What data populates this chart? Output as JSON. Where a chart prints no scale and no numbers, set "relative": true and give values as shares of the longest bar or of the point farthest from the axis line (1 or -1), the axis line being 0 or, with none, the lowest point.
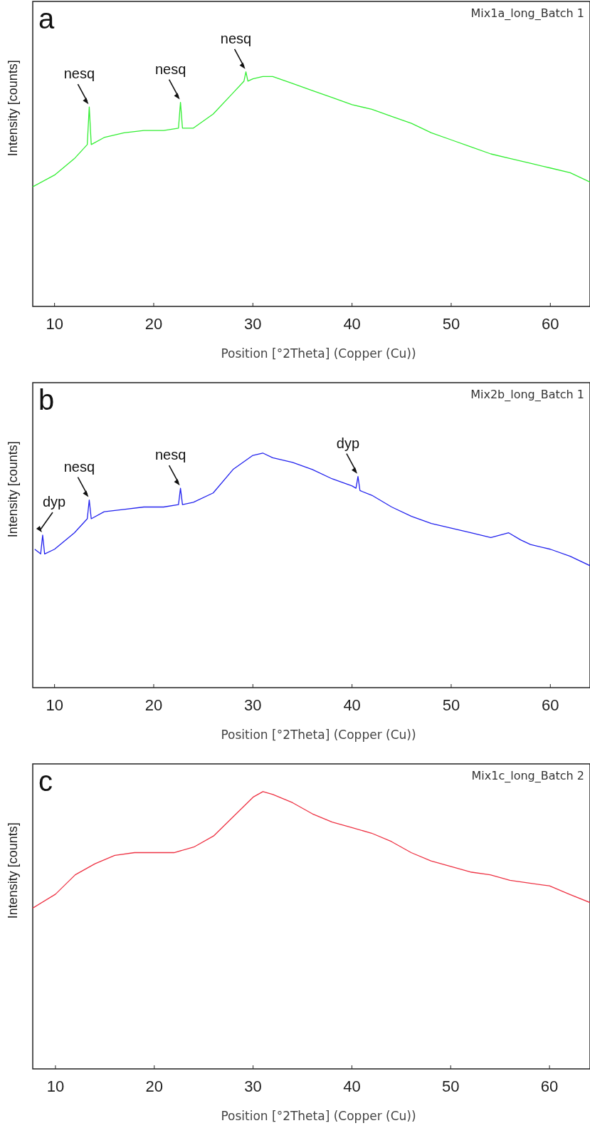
{
  "chart_data": [
    {
      "type": "line",
      "title": "Mix1a_long_Batch 1",
      "subtitle": "a",
      "xlabel": "Position [°2Theta] (Copper (Cu))",
      "ylabel": "Intensity [counts]",
      "relative": true,
      "tick_labels": "x",
      "xlim": [
        7.8,
        64
      ],
      "xticks": [
        10,
        20,
        30,
        40,
        50,
        60
      ],
      "series": [
        {
          "color": "#33ee33",
          "x": [
            7.8,
            10,
            12,
            13.3,
            13.5,
            13.7,
            15,
            17,
            19,
            21,
            22.5,
            22.7,
            22.9,
            24,
            26,
            28,
            29.1,
            29.3,
            29.5,
            30,
            31,
            32,
            34,
            36,
            38,
            40,
            42,
            44,
            46,
            48,
            50,
            52,
            54,
            56,
            58,
            60,
            62,
            64
          ],
          "values": [
            0.51,
            0.56,
            0.63,
            0.69,
            0.85,
            0.69,
            0.72,
            0.74,
            0.75,
            0.75,
            0.76,
            0.87,
            0.76,
            0.76,
            0.82,
            0.91,
            0.96,
            1,
            0.96,
            0.97,
            0.98,
            0.98,
            0.95,
            0.92,
            0.89,
            0.86,
            0.84,
            0.81,
            0.78,
            0.74,
            0.71,
            0.68,
            0.65,
            0.63,
            0.61,
            0.59,
            0.57,
            0.53
          ]
        }
      ],
      "annotations": [
        {
          "text": "nesq",
          "x": 13.5,
          "y": 0.85
        },
        {
          "text": "nesq",
          "x": 22.7,
          "y": 0.87
        },
        {
          "text": "nesq",
          "x": 29.3,
          "y": 1
        }
      ]
    },
    {
      "type": "line",
      "title": "Mix2b_long_Batch 1",
      "subtitle": "b",
      "xlabel": "Position [°2Theta] (Copper (Cu))",
      "ylabel": "Intensity [counts]",
      "relative": true,
      "tick_labels": "x",
      "xlim": [
        7.8,
        64
      ],
      "xticks": [
        10,
        20,
        30,
        40,
        50,
        60
      ],
      "series": [
        {
          "color": "#2222ee",
          "x": [
            8,
            8.6,
            8.8,
            9,
            10,
            12,
            13.3,
            13.5,
            13.7,
            15,
            17,
            19,
            21,
            22.5,
            22.7,
            22.9,
            24,
            26,
            28,
            30,
            31,
            32,
            34,
            36,
            38,
            40,
            40.4,
            40.6,
            40.8,
            42,
            44,
            46,
            48,
            50,
            52,
            54,
            55.8,
            57,
            58,
            60,
            62,
            64
          ],
          "values": [
            0.59,
            0.57,
            0.65,
            0.57,
            0.59,
            0.66,
            0.72,
            0.8,
            0.72,
            0.75,
            0.76,
            0.77,
            0.77,
            0.78,
            0.85,
            0.78,
            0.79,
            0.83,
            0.93,
            0.99,
            1,
            0.98,
            0.96,
            0.93,
            0.89,
            0.86,
            0.85,
            0.9,
            0.84,
            0.82,
            0.77,
            0.73,
            0.7,
            0.68,
            0.66,
            0.64,
            0.66,
            0.63,
            0.61,
            0.59,
            0.56,
            0.52
          ]
        }
      ],
      "annotations": [
        {
          "text": "dyp",
          "x": 8.8,
          "y": 0.65
        },
        {
          "text": "nesq",
          "x": 13.5,
          "y": 0.8
        },
        {
          "text": "nesq",
          "x": 22.7,
          "y": 0.85
        },
        {
          "text": "dyp",
          "x": 40.6,
          "y": 0.9
        }
      ]
    },
    {
      "type": "line",
      "title": "Mix1c_long_Batch 2",
      "subtitle": "c",
      "xlabel": "Position [°2Theta] (Copper (Cu))",
      "ylabel": "Intensity [counts]",
      "relative": true,
      "tick_labels": "x",
      "xlim": [
        7.7,
        64.1
      ],
      "xticks": [
        10,
        20,
        30,
        40,
        50,
        60
      ],
      "series": [
        {
          "color": "#ee3344",
          "x": [
            7.7,
            10,
            12,
            14,
            16,
            18,
            20,
            22,
            24,
            26,
            28,
            30,
            31,
            32,
            34,
            36,
            38,
            40,
            42,
            44,
            46,
            48,
            50,
            52,
            54,
            56,
            58,
            60,
            62,
            64.1
          ],
          "values": [
            0.58,
            0.63,
            0.7,
            0.74,
            0.77,
            0.78,
            0.78,
            0.78,
            0.8,
            0.84,
            0.91,
            0.98,
            1,
            0.99,
            0.96,
            0.92,
            0.89,
            0.87,
            0.85,
            0.82,
            0.78,
            0.75,
            0.73,
            0.71,
            0.7,
            0.68,
            0.67,
            0.66,
            0.63,
            0.6
          ]
        }
      ]
    }
  ]
}
